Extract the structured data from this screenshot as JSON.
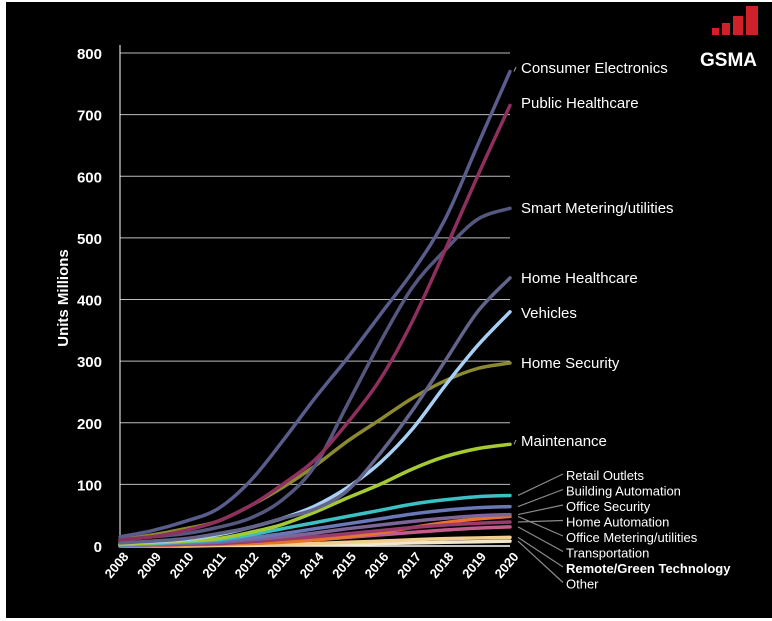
{
  "logo": {
    "text": "GSMA"
  },
  "chart_data": {
    "type": "line",
    "title": "",
    "xlabel": "",
    "ylabel": "Units Millions",
    "ylim": [
      0,
      800
    ],
    "yticks": [
      0,
      100,
      200,
      300,
      400,
      500,
      600,
      700,
      800
    ],
    "grid": true,
    "legend": "right",
    "x": [
      "2008",
      "2009",
      "2010",
      "2011",
      "2012",
      "2013",
      "2014",
      "2015",
      "2016",
      "2017",
      "2018",
      "2019",
      "2020"
    ],
    "series": [
      {
        "name": "Consumer Electronics",
        "color": "#5a5c8c",
        "values": [
          15,
          25,
          40,
          60,
          105,
          170,
          240,
          305,
          375,
          445,
          530,
          650,
          770
        ]
      },
      {
        "name": "Public Healthcare",
        "color": "#8e2f5e",
        "values": [
          10,
          15,
          25,
          40,
          65,
          100,
          140,
          200,
          270,
          365,
          480,
          600,
          715
        ]
      },
      {
        "name": "Smart Metering/utilities",
        "color": "#55577f",
        "values": [
          10,
          15,
          20,
          30,
          45,
          75,
          130,
          230,
          330,
          420,
          480,
          530,
          548
        ]
      },
      {
        "name": "Home Healthcare",
        "color": "#636489",
        "values": [
          5,
          8,
          12,
          20,
          30,
          45,
          60,
          90,
          150,
          220,
          300,
          380,
          435
        ]
      },
      {
        "name": "Vehicles",
        "color": "#a8d0f4",
        "values": [
          5,
          7,
          10,
          18,
          30,
          45,
          65,
          95,
          135,
          190,
          260,
          325,
          380
        ]
      },
      {
        "name": "Home Security",
        "color": "#8c8a30",
        "values": [
          10,
          18,
          28,
          40,
          65,
          95,
          130,
          170,
          205,
          240,
          268,
          288,
          297
        ]
      },
      {
        "name": "Maintenance",
        "color": "#a6cb32",
        "values": [
          3,
          5,
          8,
          12,
          22,
          35,
          55,
          78,
          100,
          125,
          145,
          158,
          165
        ]
      },
      {
        "name": "Retail Outlets",
        "color": "#3bc0c4",
        "values": [
          2,
          4,
          7,
          10,
          18,
          28,
          38,
          48,
          58,
          68,
          75,
          80,
          82
        ]
      },
      {
        "name": "Building Automation",
        "color": "#6a78b8",
        "values": [
          1,
          3,
          5,
          8,
          13,
          20,
          28,
          36,
          44,
          52,
          58,
          62,
          64
        ]
      },
      {
        "name": "Office Security",
        "color": "#7e6598",
        "values": [
          1,
          2,
          4,
          6,
          10,
          15,
          21,
          28,
          34,
          40,
          45,
          49,
          51
        ]
      },
      {
        "name": "Home Automation",
        "color": "#9a3b6e",
        "values": [
          1,
          2,
          3,
          4,
          7,
          11,
          15,
          20,
          25,
          30,
          34,
          37,
          39
        ]
      },
      {
        "name": "Office Metering/utilities",
        "color": "#e8742e",
        "values": [
          0,
          1,
          2,
          3,
          4,
          6,
          10,
          15,
          22,
          30,
          38,
          44,
          48
        ]
      },
      {
        "name": "Transportation",
        "color": "#c25c8a",
        "values": [
          0,
          1,
          2,
          3,
          5,
          7,
          10,
          14,
          18,
          22,
          26,
          29,
          31
        ]
      },
      {
        "name": "Remote/Green Technology",
        "color": "#f2cf8c",
        "values": [
          0,
          0,
          1,
          1,
          2,
          3,
          4,
          6,
          8,
          10,
          12,
          13,
          14
        ]
      },
      {
        "name": "Other",
        "color": "#f3e7c8",
        "values": [
          0,
          0,
          0,
          1,
          1,
          2,
          2,
          3,
          4,
          5,
          6,
          7,
          8
        ]
      }
    ]
  }
}
